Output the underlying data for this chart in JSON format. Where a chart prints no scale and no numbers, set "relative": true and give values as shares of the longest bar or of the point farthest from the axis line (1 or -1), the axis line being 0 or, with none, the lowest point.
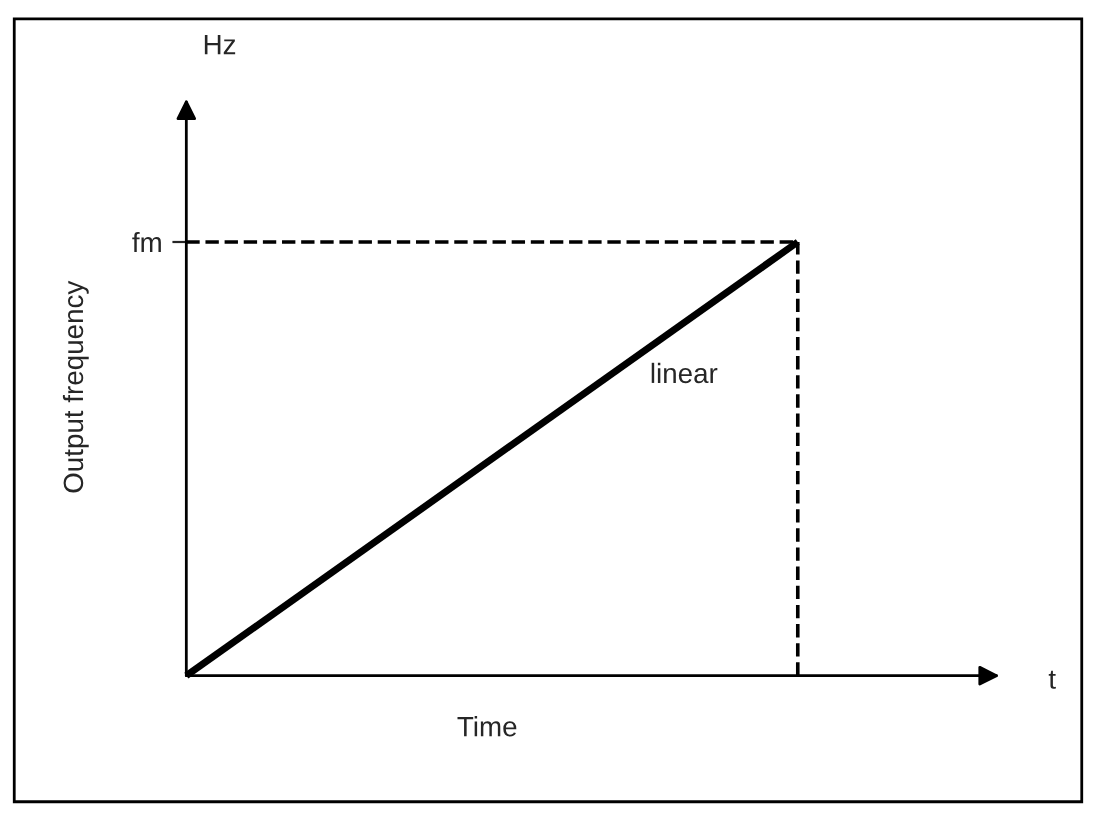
{
  "chart_data": {
    "type": "line",
    "relative": true,
    "categories": [
      null,
      null
    ],
    "series": [
      {
        "color": "#000000",
        "values": [
          0,
          1
        ]
      }
    ],
    "xlabel": "Time",
    "ylabel": "Output frequency",
    "ref_lines": [
      {
        "axis": "y",
        "value": 1,
        "label": "fm",
        "line_style": "dashed",
        "color": "#000000"
      }
    ],
    "annotations": [
      "Hz",
      "t",
      "linear"
    ],
    "legend": false,
    "grid": false,
    "marker": "none",
    "line_style": "solid"
  }
}
